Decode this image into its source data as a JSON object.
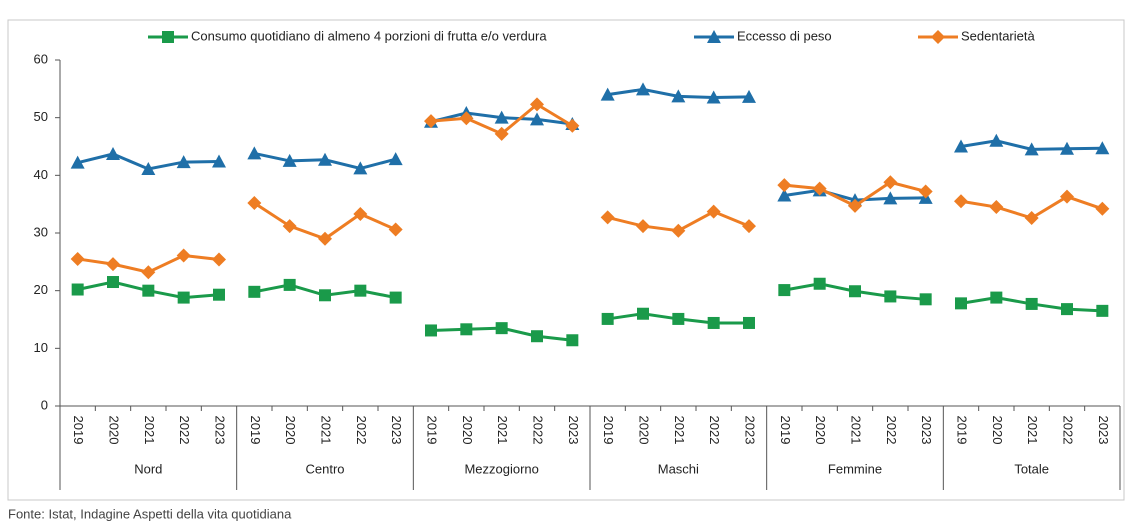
{
  "chart_data": {
    "type": "line",
    "groups": [
      "Nord",
      "Centro",
      "Mezzogiorno",
      "Maschi",
      "Femmine",
      "Totale"
    ],
    "categories": [
      "2019",
      "2020",
      "2021",
      "2022",
      "2023",
      "2019",
      "2020",
      "2021",
      "2022",
      "2023",
      "2019",
      "2020",
      "2021",
      "2022",
      "2023",
      "2019",
      "2020",
      "2021",
      "2022",
      "2023",
      "2019",
      "2020",
      "2021",
      "2022",
      "2023",
      "2019",
      "2020",
      "2021",
      "2022",
      "2023"
    ],
    "series": [
      {
        "name": "Consumo quotidiano di almeno 4 porzioni di frutta e/o verdura",
        "color": "#1a9a4a",
        "marker": "square",
        "values": [
          20.2,
          21.5,
          20.0,
          18.8,
          19.3,
          19.8,
          21.0,
          19.2,
          20.0,
          18.8,
          13.1,
          13.3,
          13.5,
          12.1,
          11.4,
          15.1,
          16.0,
          15.1,
          14.4,
          14.4,
          20.1,
          21.2,
          19.9,
          19.0,
          18.5,
          17.8,
          18.8,
          17.7,
          16.8,
          16.5
        ]
      },
      {
        "name": "Eccesso di peso",
        "color": "#1f6fa8",
        "marker": "triangle",
        "values": [
          42.2,
          43.7,
          41.1,
          42.3,
          42.4,
          43.8,
          42.5,
          42.7,
          41.2,
          42.8,
          49.3,
          50.8,
          50.0,
          49.7,
          48.9,
          54.0,
          54.9,
          53.7,
          53.5,
          53.6,
          36.5,
          37.4,
          35.7,
          36.0,
          36.1,
          45.0,
          46.0,
          44.5,
          44.6,
          44.7
        ]
      },
      {
        "name": "Sedentarietà",
        "color": "#ee7d23",
        "marker": "diamond",
        "values": [
          25.5,
          24.6,
          23.2,
          26.1,
          25.4,
          35.2,
          31.2,
          29.0,
          33.3,
          30.6,
          49.4,
          49.9,
          47.2,
          52.3,
          48.6,
          32.7,
          31.2,
          30.4,
          33.7,
          31.2,
          38.3,
          37.7,
          34.7,
          38.8,
          37.2,
          35.5,
          34.5,
          32.6,
          36.3,
          34.2
        ]
      }
    ],
    "ylim": [
      0,
      60
    ],
    "yticks": [
      0,
      10,
      20,
      30,
      40,
      50,
      60
    ],
    "grid": false,
    "source": "Fonte: Istat, Indagine Aspetti della vita quotidiana"
  }
}
